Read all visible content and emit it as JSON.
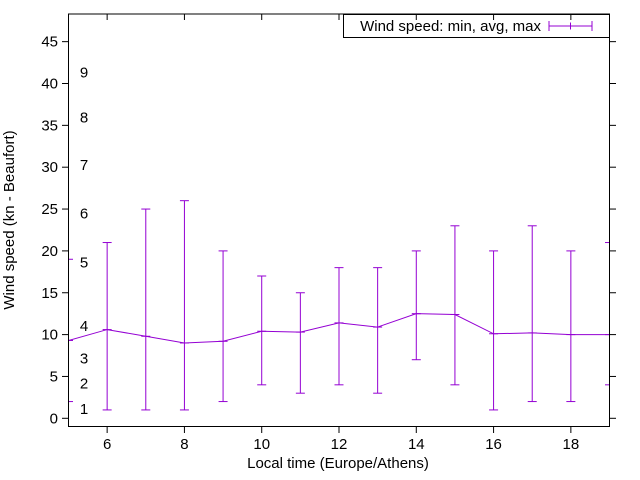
{
  "chart_data": {
    "type": "line",
    "style": "yerrorlines",
    "title": "",
    "xlabel": "Local time (Europe/Athens)",
    "ylabel": "Wind speed (kn - Beaufort)",
    "legend": {
      "label": "Wind speed: min, avg, max",
      "position": "top-right",
      "sample": "error-bar"
    },
    "xlim": [
      5,
      19
    ],
    "ylim": [
      -1,
      48.3
    ],
    "grid": false,
    "x_ticks": [
      6,
      8,
      10,
      12,
      14,
      16,
      18
    ],
    "y_ticks": [
      0,
      5,
      10,
      15,
      20,
      25,
      30,
      35,
      40,
      45
    ],
    "beaufort_scale": [
      {
        "label": "1",
        "kn": 1.2
      },
      {
        "label": "2",
        "kn": 4.2
      },
      {
        "label": "3",
        "kn": 7.2
      },
      {
        "label": "4",
        "kn": 11.1
      },
      {
        "label": "5",
        "kn": 18.7
      },
      {
        "label": "6",
        "kn": 24.5
      },
      {
        "label": "7",
        "kn": 30.3
      },
      {
        "label": "8",
        "kn": 36.0
      },
      {
        "label": "9",
        "kn": 41.4
      }
    ],
    "x": [
      5,
      6,
      7,
      8,
      9,
      10,
      11,
      12,
      13,
      14,
      15,
      16,
      17,
      18,
      19
    ],
    "series": [
      {
        "name": "min",
        "values": [
          2,
          1,
          1,
          1,
          2,
          4,
          3,
          4,
          3,
          7,
          4,
          1,
          2,
          2,
          4
        ]
      },
      {
        "name": "avg",
        "values": [
          9.3,
          10.6,
          9.8,
          9.0,
          9.2,
          10.4,
          10.3,
          11.4,
          10.9,
          12.5,
          12.4,
          10.1,
          10.2,
          10.0,
          10.0
        ]
      },
      {
        "name": "max",
        "values": [
          19,
          21,
          25,
          26,
          20,
          17,
          15,
          18,
          18,
          20,
          23,
          20,
          23,
          20,
          21
        ]
      }
    ],
    "colors": {
      "series": "#9400d3",
      "axis": "#000000",
      "text": "#000000",
      "background": "#ffffff"
    }
  }
}
